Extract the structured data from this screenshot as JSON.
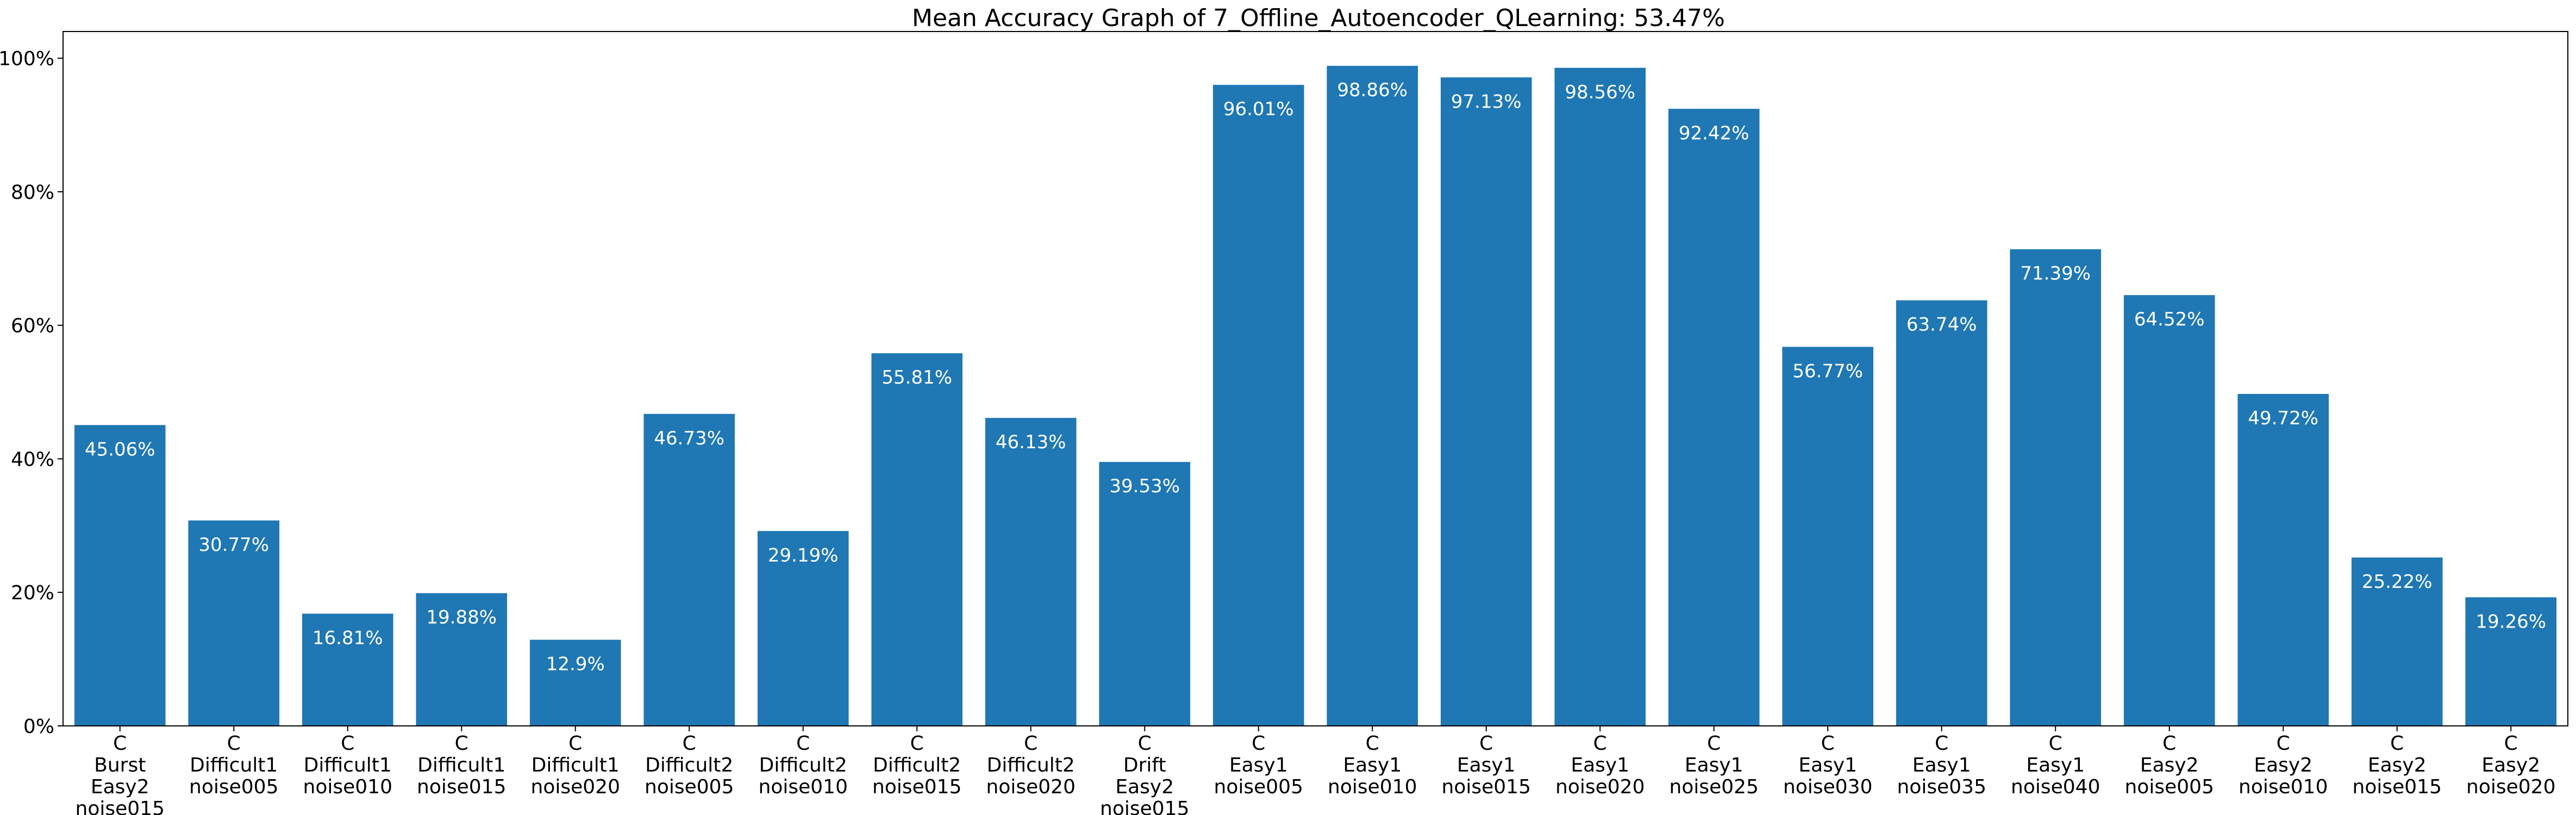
{
  "chart_data": {
    "type": "bar",
    "title": "Mean Accuracy Graph of 7_Offline_Autoencoder_QLearning: 53.47%",
    "xlabel": "",
    "ylabel": "",
    "ylim": [
      0,
      104
    ],
    "yticks": [
      0,
      20,
      40,
      60,
      80,
      100
    ],
    "ytick_labels": [
      "0%",
      "20%",
      "40%",
      "60%",
      "80%",
      "100%"
    ],
    "grid": false,
    "bar_color": "#1f77b4",
    "categories": [
      [
        "C",
        "Burst",
        "Easy2",
        "noise015"
      ],
      [
        "C",
        "Difficult1",
        "noise005"
      ],
      [
        "C",
        "Difficult1",
        "noise010"
      ],
      [
        "C",
        "Difficult1",
        "noise015"
      ],
      [
        "C",
        "Difficult1",
        "noise020"
      ],
      [
        "C",
        "Difficult2",
        "noise005"
      ],
      [
        "C",
        "Difficult2",
        "noise010"
      ],
      [
        "C",
        "Difficult2",
        "noise015"
      ],
      [
        "C",
        "Difficult2",
        "noise020"
      ],
      [
        "C",
        "Drift",
        "Easy2",
        "noise015"
      ],
      [
        "C",
        "Easy1",
        "noise005"
      ],
      [
        "C",
        "Easy1",
        "noise010"
      ],
      [
        "C",
        "Easy1",
        "noise015"
      ],
      [
        "C",
        "Easy1",
        "noise020"
      ],
      [
        "C",
        "Easy1",
        "noise025"
      ],
      [
        "C",
        "Easy1",
        "noise030"
      ],
      [
        "C",
        "Easy1",
        "noise035"
      ],
      [
        "C",
        "Easy1",
        "noise040"
      ],
      [
        "C",
        "Easy2",
        "noise005"
      ],
      [
        "C",
        "Easy2",
        "noise010"
      ],
      [
        "C",
        "Easy2",
        "noise015"
      ],
      [
        "C",
        "Easy2",
        "noise020"
      ]
    ],
    "values": [
      45.06,
      30.77,
      16.81,
      19.88,
      12.9,
      46.73,
      29.19,
      55.81,
      46.13,
      39.53,
      96.01,
      98.86,
      97.13,
      98.56,
      92.42,
      56.77,
      63.74,
      71.39,
      64.52,
      49.72,
      25.22,
      19.26
    ],
    "value_labels": [
      "45.06%",
      "30.77%",
      "16.81%",
      "19.88%",
      "12.9%",
      "46.73%",
      "29.19%",
      "55.81%",
      "46.13%",
      "39.53%",
      "96.01%",
      "98.86%",
      "97.13%",
      "98.56%",
      "92.42%",
      "56.77%",
      "63.74%",
      "71.39%",
      "64.52%",
      "49.72%",
      "25.22%",
      "19.26%"
    ]
  }
}
